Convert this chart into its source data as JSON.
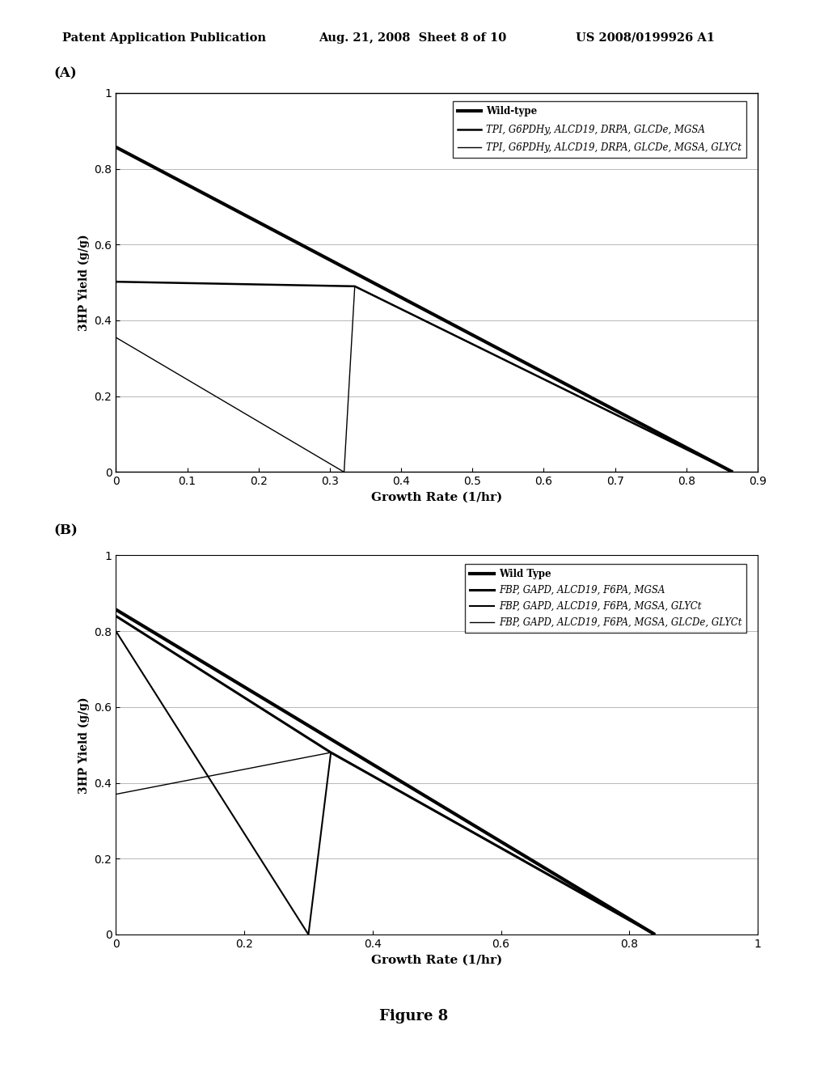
{
  "header_left": "Patent Application Publication",
  "header_mid": "Aug. 21, 2008  Sheet 8 of 10",
  "header_right": "US 2008/0199926 A1",
  "figure_label": "Figure 8",
  "panel_A": {
    "label": "(A)",
    "xlabel": "Growth Rate (1/hr)",
    "ylabel": "3HP Yield (g/g)",
    "xlim": [
      0,
      0.9
    ],
    "ylim": [
      0,
      1
    ],
    "xticks": [
      0,
      0.1,
      0.2,
      0.3,
      0.4,
      0.5,
      0.6,
      0.7,
      0.8,
      0.9
    ],
    "yticks": [
      0,
      0.2,
      0.4,
      0.6,
      0.8,
      1
    ],
    "lines": [
      {
        "label": "Wild-type",
        "x": [
          0,
          0.865
        ],
        "y": [
          0.857,
          0.0
        ],
        "color": "#000000",
        "linewidth": 3.0,
        "linestyle": "solid"
      },
      {
        "label": "TPI, G6PDHy, ALCD19, DRPA, GLCDe, MGSA",
        "x": [
          0,
          0.335,
          0.865
        ],
        "y": [
          0.502,
          0.49,
          0.0
        ],
        "color": "#000000",
        "linewidth": 1.8,
        "linestyle": "solid"
      },
      {
        "label": "TPI, G6PDHy, ALCD19, DRPA, GLCDe, MGSA, GLYCt",
        "x": [
          0,
          0.32,
          0.335,
          0.865
        ],
        "y": [
          0.355,
          0.0,
          0.49,
          0.0
        ],
        "color": "#000000",
        "linewidth": 1.0,
        "linestyle": "solid"
      }
    ]
  },
  "panel_B": {
    "label": "(B)",
    "xlabel": "Growth Rate (1/hr)",
    "ylabel": "3HP Yield (g/g)",
    "xlim": [
      0,
      1.0
    ],
    "ylim": [
      0,
      1
    ],
    "xticks": [
      0,
      0.2,
      0.4,
      0.6,
      0.8,
      1.0
    ],
    "yticks": [
      0,
      0.2,
      0.4,
      0.6,
      0.8,
      1
    ],
    "lines": [
      {
        "label": "Wild Type",
        "x": [
          0,
          0.84
        ],
        "y": [
          0.857,
          0.0
        ],
        "color": "#000000",
        "linewidth": 3.0,
        "linestyle": "solid"
      },
      {
        "label": "FBP, GAPD, ALCD19, F6PA, MGSA",
        "x": [
          0,
          0.335,
          0.84
        ],
        "y": [
          0.84,
          0.48,
          0.0
        ],
        "color": "#000000",
        "linewidth": 2.2,
        "linestyle": "solid"
      },
      {
        "label": "FBP, GAPD, ALCD19, F6PA, MGSA, GLYCt",
        "x": [
          0,
          0.3,
          0.335,
          0.84
        ],
        "y": [
          0.8,
          0.0,
          0.48,
          0.0
        ],
        "color": "#000000",
        "linewidth": 1.5,
        "linestyle": "solid"
      },
      {
        "label": "FBP, GAPD, ALCD19, F6PA, MGSA, GLCDe, GLYCt",
        "x": [
          0,
          0.335,
          0.84
        ],
        "y": [
          0.37,
          0.48,
          0.0
        ],
        "color": "#000000",
        "linewidth": 1.0,
        "linestyle": "solid"
      }
    ]
  }
}
